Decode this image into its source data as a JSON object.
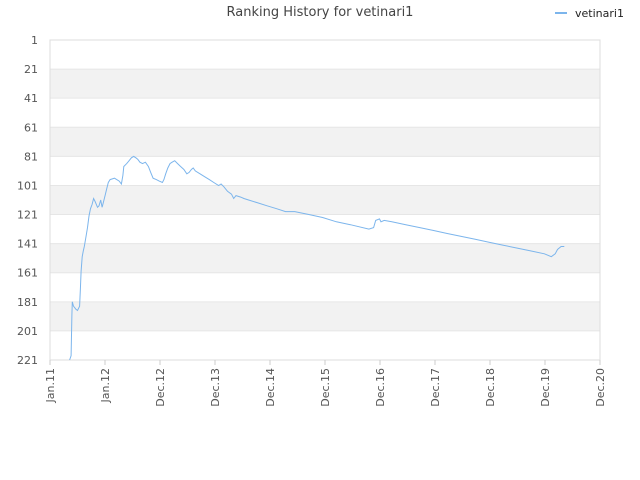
{
  "chart_data": {
    "type": "line",
    "title": "Ranking History for vetinari1",
    "xlabel": "",
    "ylabel": "",
    "y_inverted": true,
    "ylim": [
      221,
      1
    ],
    "yticks": [
      1,
      21,
      41,
      61,
      81,
      101,
      121,
      141,
      161,
      181,
      201,
      221
    ],
    "xlim": [
      "2011-01",
      "2020-12"
    ],
    "xticks": [
      "Jan.11",
      "Jan.12",
      "Dec.12",
      "Dec.13",
      "Dec.14",
      "Dec.15",
      "Dec.16",
      "Dec.17",
      "Dec.18",
      "Dec.19",
      "Dec.20"
    ],
    "grid": "horizontal bands",
    "legend_position": "top-right",
    "colors": {
      "series": "#7cb5ec",
      "band": "#f2f2f2",
      "grid": "#e6e6e6"
    },
    "series": [
      {
        "name": "vetinari1",
        "points": [
          [
            "2011-05-10",
            221
          ],
          [
            "2011-05-20",
            218
          ],
          [
            "2011-05-25",
            190
          ],
          [
            "2011-05-28",
            181
          ],
          [
            "2011-06-05",
            184
          ],
          [
            "2011-06-20",
            186
          ],
          [
            "2011-07-01",
            187
          ],
          [
            "2011-07-15",
            184
          ],
          [
            "2011-07-20",
            172
          ],
          [
            "2011-07-25",
            160
          ],
          [
            "2011-08-01",
            150
          ],
          [
            "2011-08-08",
            146
          ],
          [
            "2011-08-15",
            143
          ],
          [
            "2011-08-25",
            137
          ],
          [
            "2011-09-05",
            130
          ],
          [
            "2011-09-15",
            122
          ],
          [
            "2011-09-25",
            117
          ],
          [
            "2011-10-05",
            114
          ],
          [
            "2011-10-15",
            110
          ],
          [
            "2011-10-25",
            112
          ],
          [
            "2011-11-10",
            116
          ],
          [
            "2011-11-20",
            115
          ],
          [
            "2011-12-01",
            111
          ],
          [
            "2011-12-10",
            116
          ],
          [
            "2011-12-20",
            112
          ],
          [
            "2012-01-01",
            107
          ],
          [
            "2012-01-10",
            103
          ],
          [
            "2012-01-20",
            99
          ],
          [
            "2012-02-01",
            97
          ],
          [
            "2012-03-01",
            96
          ],
          [
            "2012-04-01",
            98
          ],
          [
            "2012-04-15",
            100
          ],
          [
            "2012-04-25",
            94
          ],
          [
            "2012-05-01",
            88
          ],
          [
            "2012-05-20",
            86
          ],
          [
            "2012-06-05",
            84
          ],
          [
            "2012-06-20",
            82
          ],
          [
            "2012-07-05",
            81
          ],
          [
            "2012-07-20",
            82
          ],
          [
            "2012-08-01",
            83
          ],
          [
            "2012-08-15",
            85
          ],
          [
            "2012-09-01",
            86
          ],
          [
            "2012-09-20",
            85
          ],
          [
            "2012-10-10",
            88
          ],
          [
            "2012-10-25",
            92
          ],
          [
            "2012-11-10",
            96
          ],
          [
            "2012-12-01",
            97
          ],
          [
            "2012-12-20",
            98
          ],
          [
            "2013-01-10",
            99
          ],
          [
            "2013-01-20",
            97
          ],
          [
            "2013-02-01",
            93
          ],
          [
            "2013-02-15",
            89
          ],
          [
            "2013-03-01",
            86
          ],
          [
            "2013-03-15",
            85
          ],
          [
            "2013-04-01",
            84
          ],
          [
            "2013-04-20",
            86
          ],
          [
            "2013-05-10",
            88
          ],
          [
            "2013-06-01",
            90
          ],
          [
            "2013-06-20",
            93
          ],
          [
            "2013-07-05",
            92
          ],
          [
            "2013-07-20",
            90
          ],
          [
            "2013-08-01",
            89
          ],
          [
            "2013-08-15",
            91
          ],
          [
            "2013-09-15",
            93
          ],
          [
            "2013-10-15",
            95
          ],
          [
            "2013-11-15",
            97
          ],
          [
            "2013-12-15",
            99
          ],
          [
            "2014-01-15",
            101
          ],
          [
            "2014-02-01",
            100
          ],
          [
            "2014-02-20",
            102
          ],
          [
            "2014-03-15",
            105
          ],
          [
            "2014-04-10",
            107
          ],
          [
            "2014-04-25",
            110
          ],
          [
            "2014-05-10",
            108
          ],
          [
            "2014-06-10",
            109
          ],
          [
            "2014-07-01",
            110
          ],
          [
            "2014-08-01",
            111
          ],
          [
            "2014-10-01",
            113
          ],
          [
            "2014-12-01",
            115
          ],
          [
            "2015-02-01",
            117
          ],
          [
            "2015-04-01",
            119
          ],
          [
            "2015-06-01",
            119
          ],
          [
            "2015-09-01",
            121
          ],
          [
            "2015-12-01",
            123
          ],
          [
            "2016-03-01",
            126
          ],
          [
            "2016-06-01",
            128
          ],
          [
            "2016-10-01",
            131
          ],
          [
            "2016-11-01",
            130
          ],
          [
            "2016-11-15",
            125
          ],
          [
            "2016-12-10",
            124
          ],
          [
            "2016-12-20",
            126
          ],
          [
            "2017-01-10",
            125
          ],
          [
            "2017-03-01",
            126
          ],
          [
            "2017-06-01",
            128
          ],
          [
            "2017-09-01",
            130
          ],
          [
            "2017-12-01",
            132
          ],
          [
            "2018-03-01",
            134
          ],
          [
            "2018-06-01",
            136
          ],
          [
            "2018-09-01",
            138
          ],
          [
            "2018-12-01",
            140
          ],
          [
            "2019-03-01",
            142
          ],
          [
            "2019-06-01",
            144
          ],
          [
            "2019-09-01",
            146
          ],
          [
            "2019-12-01",
            148
          ],
          [
            "2020-01-15",
            150
          ],
          [
            "2020-02-10",
            148
          ],
          [
            "2020-02-25",
            145
          ],
          [
            "2020-03-20",
            143
          ],
          [
            "2020-04-10",
            143
          ]
        ]
      }
    ]
  }
}
